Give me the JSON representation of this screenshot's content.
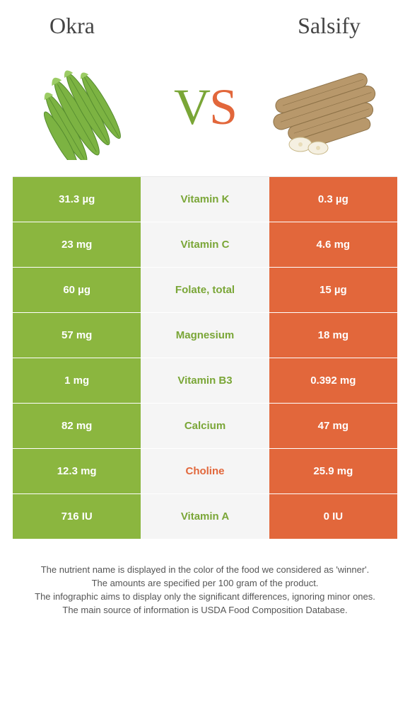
{
  "header": {
    "left_title": "Okra",
    "right_title": "Salsify",
    "vs_v": "V",
    "vs_s": "S"
  },
  "colors": {
    "left_bg": "#8bb63f",
    "right_bg": "#e2673b",
    "mid_bg": "#f5f5f5",
    "left_text": "#7aa637",
    "right_text": "#e2673b"
  },
  "rows": [
    {
      "left": "31.3 µg",
      "label": "Vitamin K",
      "right": "0.3 µg",
      "winner": "left"
    },
    {
      "left": "23 mg",
      "label": "Vitamin C",
      "right": "4.6 mg",
      "winner": "left"
    },
    {
      "left": "60 µg",
      "label": "Folate, total",
      "right": "15 µg",
      "winner": "left"
    },
    {
      "left": "57 mg",
      "label": "Magnesium",
      "right": "18 mg",
      "winner": "left"
    },
    {
      "left": "1 mg",
      "label": "Vitamin B3",
      "right": "0.392 mg",
      "winner": "left"
    },
    {
      "left": "82 mg",
      "label": "Calcium",
      "right": "47 mg",
      "winner": "left"
    },
    {
      "left": "12.3 mg",
      "label": "Choline",
      "right": "25.9 mg",
      "winner": "right"
    },
    {
      "left": "716 IU",
      "label": "Vitamin A",
      "right": "0 IU",
      "winner": "left"
    }
  ],
  "footnotes": [
    "The nutrient name is displayed in the color of the food we considered as 'winner'.",
    "The amounts are specified per 100 gram of the product.",
    "The infographic aims to display only the significant differences, ignoring minor ones.",
    "The main source of information is USDA Food Composition Database."
  ]
}
